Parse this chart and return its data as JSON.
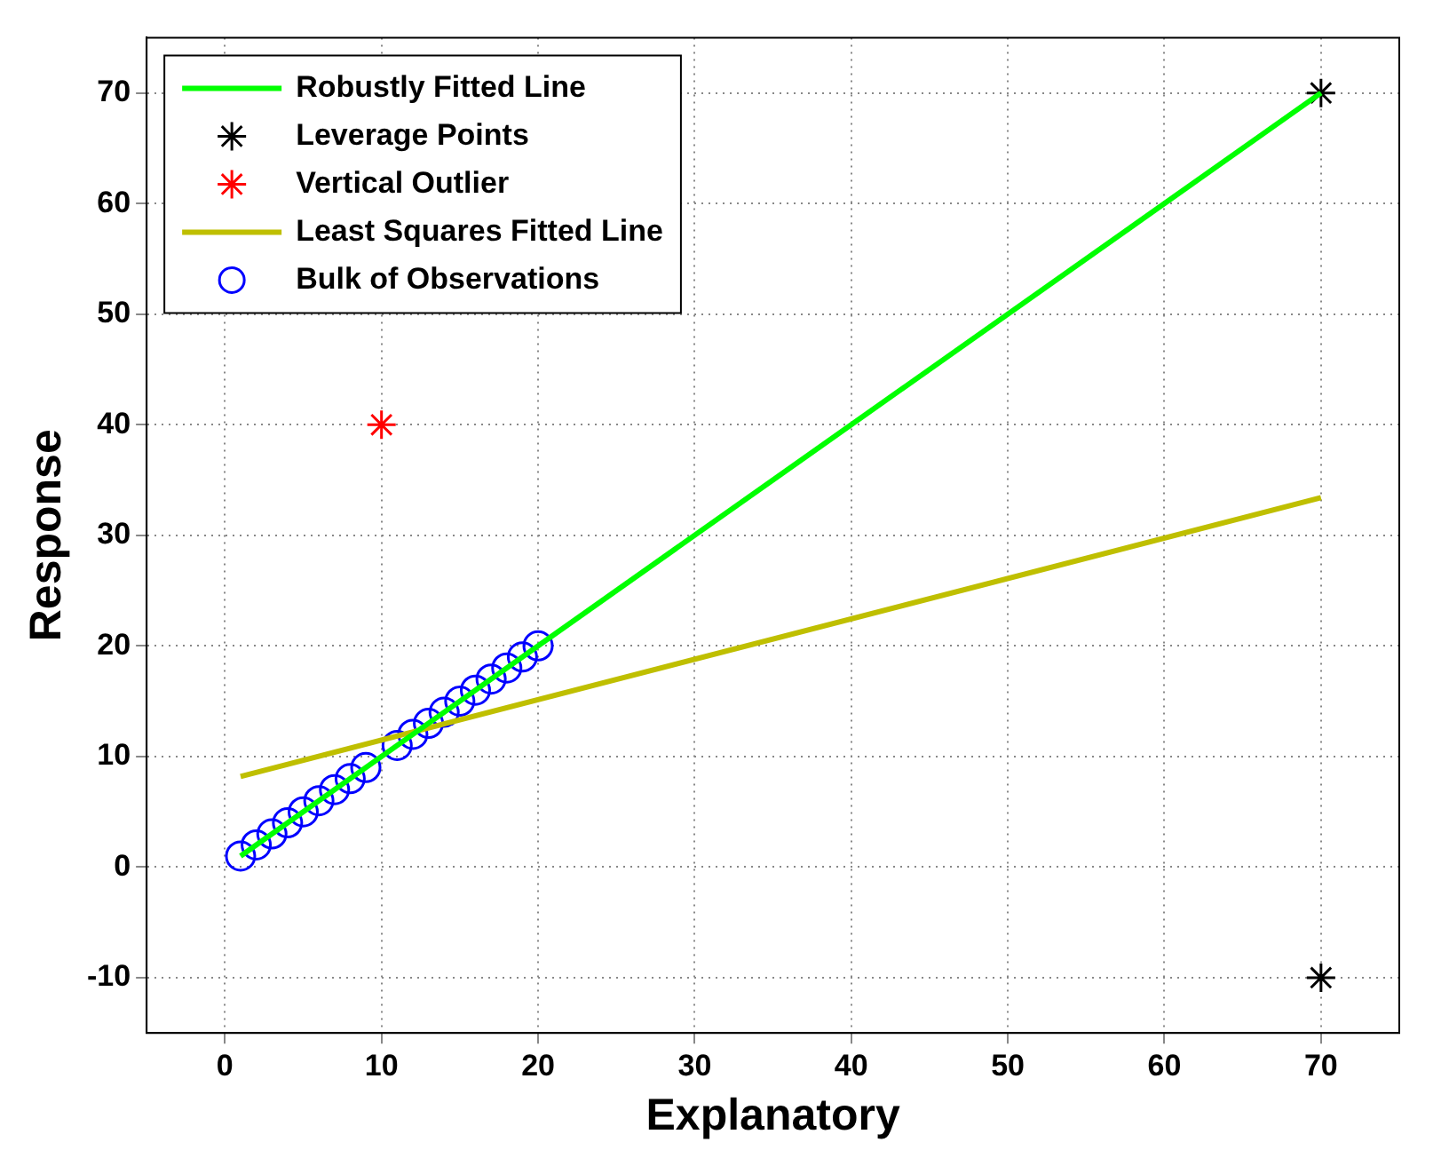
{
  "chart_data": {
    "type": "scatter",
    "xlabel": "Explanatory",
    "ylabel": "Response",
    "xlim": [
      -5,
      75
    ],
    "xticks": [
      0,
      10,
      20,
      30,
      40,
      50,
      60,
      70
    ],
    "ylim": [
      -15,
      75
    ],
    "yticks": [
      -10,
      0,
      10,
      20,
      30,
      40,
      50,
      60,
      70
    ],
    "grid": true,
    "legend": "top left",
    "series": [
      {
        "name": "Robustly Fitted Line",
        "type": "line",
        "color": "#00ff00",
        "marker": "none",
        "line_style": "solid",
        "x": [
          1,
          70
        ],
        "values": [
          1,
          70
        ]
      },
      {
        "name": "Leverage Points",
        "color": "#000000",
        "marker": "cross",
        "x": [
          70,
          70
        ],
        "values": [
          70,
          -10
        ]
      },
      {
        "name": "Vertical Outlier",
        "color": "#ff0000",
        "marker": "cross",
        "x": [
          10
        ],
        "values": [
          40
        ]
      },
      {
        "name": "Least Squares Fitted Line",
        "type": "line",
        "color": "#bfbf00",
        "marker": "none",
        "line_style": "solid",
        "x": [
          1,
          70
        ],
        "values": [
          8.2,
          33.4
        ]
      },
      {
        "name": "Bulk of Observations",
        "color": "#0000ff",
        "marker": "circle",
        "x": [
          1,
          2,
          3,
          4,
          5,
          6,
          7,
          8,
          9,
          11,
          12,
          13,
          14,
          15,
          16,
          17,
          18,
          19,
          20
        ],
        "values": [
          1,
          2,
          3,
          4,
          5,
          6,
          7,
          8,
          9,
          11,
          12,
          13,
          14,
          15,
          16,
          17,
          18,
          19,
          20
        ]
      }
    ]
  }
}
